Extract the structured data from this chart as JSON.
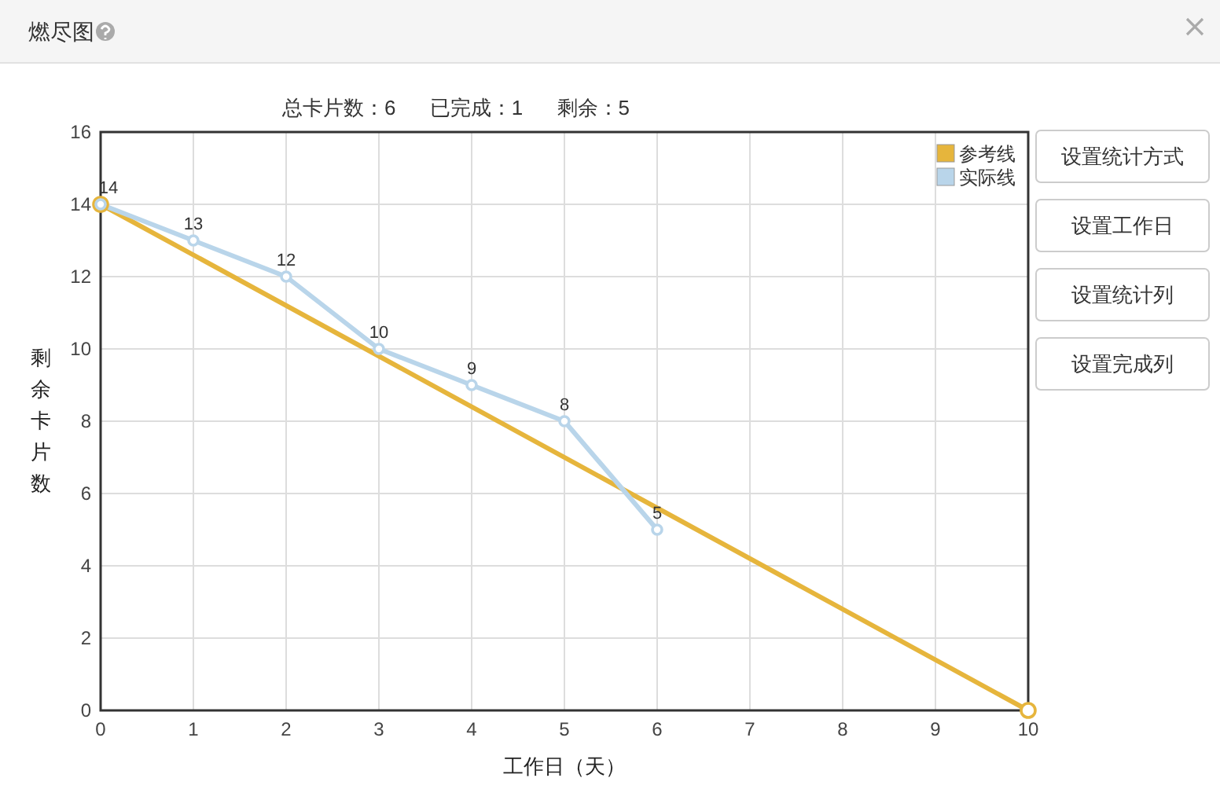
{
  "chart_data": {
    "type": "line",
    "title": "燃尽图",
    "subtitle": "总卡片数：6      已完成：1      剩余：5",
    "xlabel": "工作日（天）",
    "ylabel": "剩余卡片数",
    "annotations": [
      "设置统计方式",
      "设置工作日",
      "设置统计列",
      "设置完成列"
    ],
    "xlim": [
      0,
      10
    ],
    "xticks": [
      0,
      1,
      2,
      3,
      4,
      5,
      6,
      7,
      8,
      9,
      10
    ],
    "ylim": [
      0,
      16
    ],
    "yticks": [
      0,
      2,
      4,
      6,
      8,
      10,
      12,
      14,
      16
    ],
    "grid": true,
    "legend": "top right",
    "marker": "circle",
    "line_style": "solid",
    "series": [
      {
        "name": "参考线",
        "color": "#e6b53c",
        "x": [
          0,
          10
        ],
        "values": [
          14,
          0
        ]
      },
      {
        "name": "实际线",
        "color": "#b9d5ea",
        "x": [
          0,
          1,
          2,
          3,
          4,
          5,
          6
        ],
        "values": [
          14,
          13,
          12,
          10,
          9,
          8,
          5
        ],
        "value_labels": [
          "14",
          "13",
          "12",
          "10",
          "9",
          "8",
          "5"
        ]
      }
    ]
  }
}
